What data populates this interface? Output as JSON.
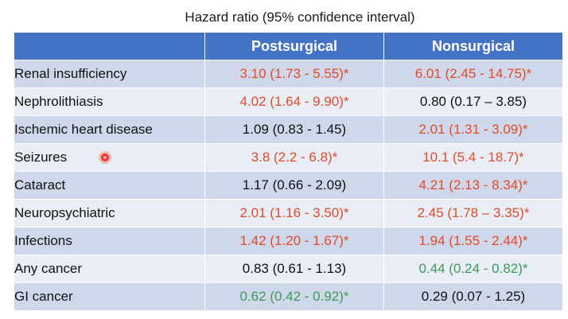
{
  "caption": "Hazard ratio (95% confidence interval)",
  "columns": [
    "",
    "Postsurgical",
    "Nonsurgical"
  ],
  "colors": {
    "significant_increase": "#e24b28",
    "not_significant": "#111111",
    "significant_decrease": "#3f9a59"
  },
  "rows": [
    {
      "label": "Renal insufficiency",
      "post": "3.10 (1.73 - 5.55)*",
      "post_color": "#e24b28",
      "non": "6.01 (2.45 - 14.75)*",
      "non_color": "#e24b28"
    },
    {
      "label": "Nephrolithiasis",
      "post": "4.02 (1.64 - 9.90)*",
      "post_color": "#e24b28",
      "non": "0.80 (0.17 – 3.85)",
      "non_color": "#111111"
    },
    {
      "label": "Ischemic heart disease",
      "post": "1.09 (0.83 - 1.45)",
      "post_color": "#111111",
      "non": "2.01 (1.31 - 3.09)*",
      "non_color": "#e24b28"
    },
    {
      "label": "Seizures",
      "post": "3.8 (2.2 - 6.8)*",
      "post_color": "#e24b28",
      "non": "10.1 (5.4 - 18.7)*",
      "non_color": "#e24b28"
    },
    {
      "label": "Cataract",
      "post": "1.17 (0.66 - 2.09)",
      "post_color": "#111111",
      "non": "4.21 (2.13 - 8.34)*",
      "non_color": "#e24b28"
    },
    {
      "label": "Neuropsychiatric",
      "post": "2.01 (1.16 - 3.50)*",
      "post_color": "#e24b28",
      "non": "2.45 (1.78 – 3.35)*",
      "non_color": "#e24b28"
    },
    {
      "label": "Infections",
      "post": "1.42 (1.20 - 1.67)*",
      "post_color": "#e24b28",
      "non": "1.94 (1.55 - 2.44)*",
      "non_color": "#e24b28"
    },
    {
      "label": "Any cancer",
      "post": "0.83 (0.61 - 1.13)",
      "post_color": "#111111",
      "non": "0.44 (0.24 - 0.82)*",
      "non_color": "#3f9a59"
    },
    {
      "label": "GI cancer",
      "post": "0.62 (0.42 - 0.92)*",
      "post_color": "#3f9a59",
      "non": "0.29 (0.07 - 1.25)",
      "non_color": "#111111"
    }
  ]
}
